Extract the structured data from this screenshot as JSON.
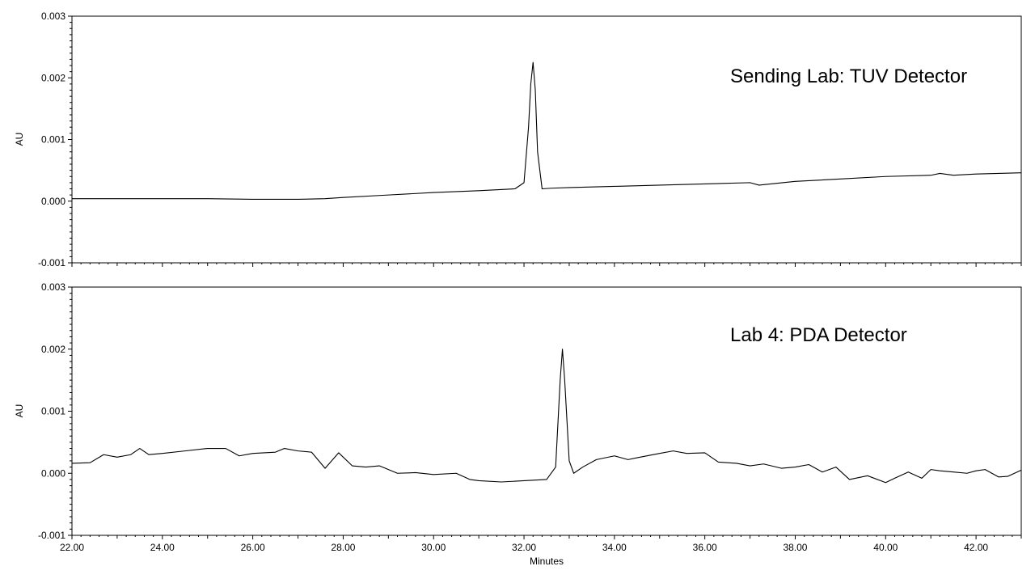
{
  "chart_data": [
    {
      "type": "line",
      "ylabel": "AU",
      "xlabel": "",
      "xlim": [
        22.0,
        43.0
      ],
      "ylim": [
        -0.001,
        0.003
      ],
      "yticks": [
        "-0.001",
        "0.000",
        "0.001",
        "0.002",
        "0.003"
      ],
      "annotation": "Sending Lab: TUV Detector",
      "series": [
        {
          "x": [
            22.0,
            23.0,
            24.0,
            25.0,
            26.0,
            27.0,
            27.6,
            28.0,
            29.0,
            30.0,
            31.0,
            31.8,
            32.0,
            32.1,
            32.15,
            32.2,
            32.25,
            32.3,
            32.4,
            32.6,
            33.0,
            34.0,
            35.0,
            36.0,
            37.0,
            37.2,
            38.0,
            39.0,
            40.0,
            41.0,
            41.2,
            41.5,
            42.0,
            43.0
          ],
          "y": [
            4e-05,
            4e-05,
            4e-05,
            4e-05,
            3e-05,
            3e-05,
            4e-05,
            6e-05,
            0.0001,
            0.00014,
            0.00017,
            0.0002,
            0.0003,
            0.0012,
            0.0019,
            0.00225,
            0.0018,
            0.0008,
            0.0002,
            0.00021,
            0.00022,
            0.00024,
            0.00026,
            0.00028,
            0.0003,
            0.00026,
            0.00032,
            0.00036,
            0.0004,
            0.00042,
            0.00045,
            0.00042,
            0.00044,
            0.00046
          ]
        }
      ]
    },
    {
      "type": "line",
      "ylabel": "AU",
      "xlabel": "Minutes",
      "xlim": [
        22.0,
        43.0
      ],
      "ylim": [
        -0.001,
        0.003
      ],
      "yticks": [
        "-0.001",
        "0.000",
        "0.001",
        "0.002",
        "0.003"
      ],
      "xticks": [
        "22.00",
        "24.00",
        "26.00",
        "28.00",
        "30.00",
        "32.00",
        "34.00",
        "36.00",
        "38.00",
        "40.00",
        "42.00"
      ],
      "xtick_values": [
        22,
        24,
        26,
        28,
        30,
        32,
        34,
        36,
        38,
        40,
        42
      ],
      "annotation": "Lab 4: PDA Detector",
      "series": [
        {
          "x": [
            22.0,
            22.4,
            22.7,
            23.0,
            23.3,
            23.5,
            23.7,
            24.0,
            24.5,
            25.0,
            25.4,
            25.7,
            26.0,
            26.5,
            26.7,
            27.0,
            27.3,
            27.6,
            27.9,
            28.2,
            28.5,
            28.8,
            29.2,
            29.6,
            30.0,
            30.5,
            30.8,
            31.0,
            31.5,
            32.0,
            32.5,
            32.7,
            32.8,
            32.85,
            32.9,
            33.0,
            33.1,
            33.3,
            33.6,
            34.0,
            34.3,
            34.5,
            35.0,
            35.3,
            35.6,
            36.0,
            36.3,
            36.7,
            37.0,
            37.3,
            37.7,
            38.0,
            38.3,
            38.6,
            38.9,
            39.2,
            39.6,
            40.0,
            40.2,
            40.5,
            40.8,
            41.0,
            41.2,
            41.5,
            41.8,
            42.0,
            42.2,
            42.5,
            42.7,
            43.0
          ],
          "y": [
            0.00016,
            0.00017,
            0.0003,
            0.00026,
            0.0003,
            0.0004,
            0.0003,
            0.00032,
            0.00036,
            0.0004,
            0.0004,
            0.00028,
            0.00032,
            0.00034,
            0.0004,
            0.00036,
            0.00034,
            8e-05,
            0.00033,
            0.00012,
            0.0001,
            0.00012,
            0.0,
            1e-05,
            -2e-05,
            0.0,
            -0.0001,
            -0.00012,
            -0.00014,
            -0.00012,
            -0.0001,
            0.0001,
            0.0015,
            0.002,
            0.0015,
            0.0002,
            0.0,
            0.0001,
            0.00022,
            0.00028,
            0.00022,
            0.00025,
            0.00032,
            0.00036,
            0.00032,
            0.00033,
            0.00018,
            0.00016,
            0.00012,
            0.00015,
            8e-05,
            0.0001,
            0.00014,
            2e-05,
            0.0001,
            -0.0001,
            -4e-05,
            -0.00015,
            -8e-05,
            2e-05,
            -8e-05,
            6e-05,
            4e-05,
            2e-05,
            0.0,
            4e-05,
            6e-05,
            -6e-05,
            -5e-05,
            5e-05
          ]
        }
      ]
    }
  ]
}
